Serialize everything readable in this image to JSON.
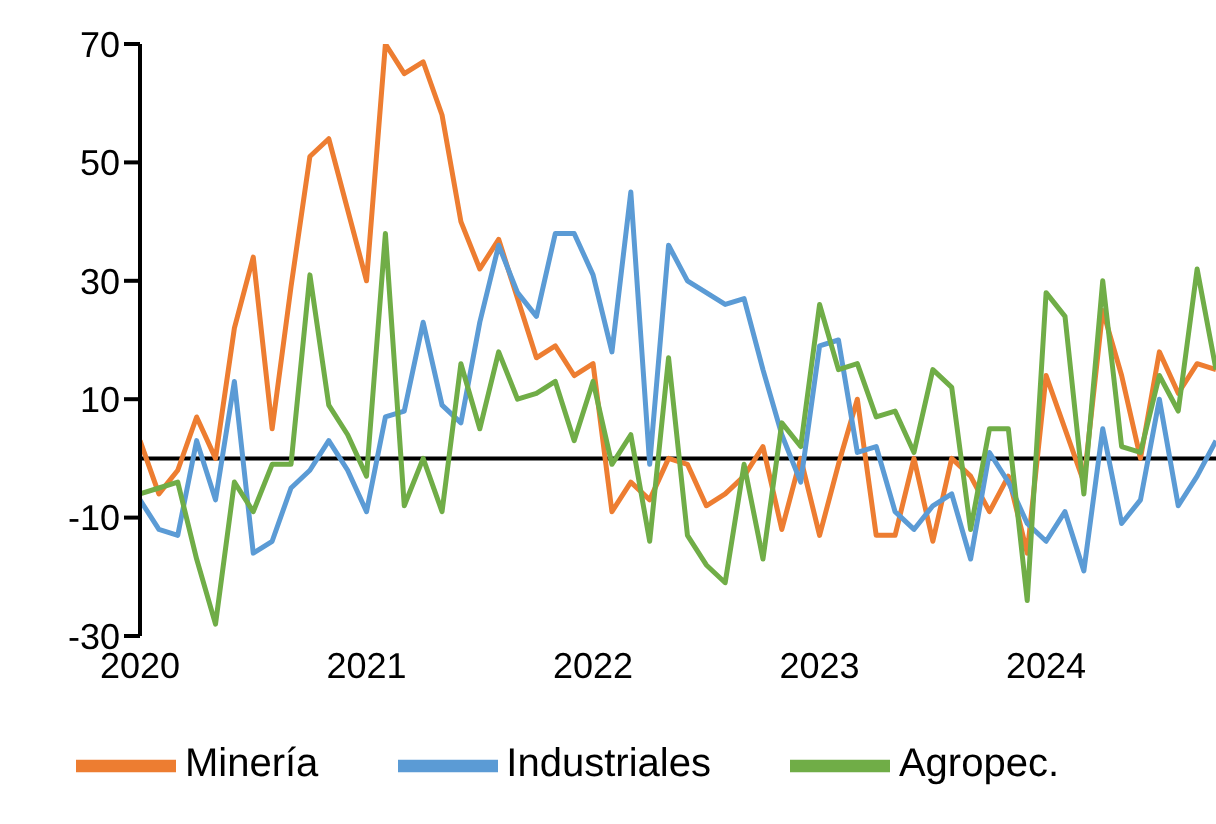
{
  "chart_data": {
    "type": "line",
    "x": [
      "2020-01",
      "2020-02",
      "2020-03",
      "2020-04",
      "2020-05",
      "2020-06",
      "2020-07",
      "2020-08",
      "2020-09",
      "2020-10",
      "2020-11",
      "2020-12",
      "2021-01",
      "2021-02",
      "2021-03",
      "2021-04",
      "2021-05",
      "2021-06",
      "2021-07",
      "2021-08",
      "2021-09",
      "2021-10",
      "2021-11",
      "2021-12",
      "2022-01",
      "2022-02",
      "2022-03",
      "2022-04",
      "2022-05",
      "2022-06",
      "2022-07",
      "2022-08",
      "2022-09",
      "2022-10",
      "2022-11",
      "2022-12",
      "2023-01",
      "2023-02",
      "2023-03",
      "2023-04",
      "2023-05",
      "2023-06",
      "2023-07",
      "2023-08",
      "2023-09",
      "2023-10",
      "2023-11",
      "2023-12",
      "2024-01",
      "2024-02",
      "2024-03",
      "2024-04",
      "2024-05",
      "2024-06",
      "2024-07",
      "2024-08",
      "2024-09",
      "2024-10"
    ],
    "series": [
      {
        "name": "Minería",
        "color": "#ed7d31",
        "values": [
          3,
          -6,
          -2,
          7,
          0,
          22,
          34,
          5,
          29,
          51,
          54,
          42,
          30,
          70,
          65,
          67,
          58,
          40,
          32,
          37,
          27,
          17,
          19,
          14,
          16,
          -9,
          -4,
          -7,
          0,
          -1,
          -8,
          -6,
          -3,
          2,
          -12,
          0,
          -13,
          -1,
          10,
          -13,
          -13,
          0,
          -14,
          0,
          -3,
          -9,
          -3,
          -16,
          14,
          5,
          -4,
          25,
          14,
          0,
          18,
          11,
          16,
          15
        ]
      },
      {
        "name": "Industriales",
        "color": "#5b9bd5",
        "values": [
          -7,
          -12,
          -13,
          3,
          -7,
          13,
          -16,
          -14,
          -5,
          -2,
          3,
          -2,
          -9,
          7,
          8,
          23,
          9,
          6,
          23,
          36,
          28,
          24,
          38,
          38,
          31,
          18,
          45,
          -1,
          36,
          30,
          28,
          26,
          27,
          15,
          4,
          -4,
          19,
          20,
          1,
          2,
          -9,
          -12,
          -8,
          -6,
          -17,
          1,
          -4,
          -11,
          -14,
          -9,
          -19,
          5,
          -11,
          -7,
          10,
          -8,
          -3,
          3
        ]
      },
      {
        "name": "Agropec.",
        "color": "#70ad47",
        "values": [
          -6,
          -5,
          -4,
          -17,
          -28,
          -4,
          -9,
          -1,
          -1,
          31,
          9,
          4,
          -3,
          38,
          -8,
          0,
          -9,
          16,
          5,
          18,
          10,
          11,
          13,
          3,
          13,
          -1,
          4,
          -14,
          17,
          -13,
          -18,
          -21,
          -1,
          -17,
          6,
          2,
          26,
          15,
          16,
          7,
          8,
          1,
          15,
          12,
          -12,
          5,
          5,
          -24,
          28,
          24,
          -6,
          30,
          2,
          1,
          14,
          8,
          32,
          15
        ]
      }
    ],
    "xlim": [
      "2020-01",
      "2024-10"
    ],
    "xticks": [
      "2020",
      "2021",
      "2022",
      "2023",
      "2024"
    ],
    "ylim": [
      -30,
      70
    ],
    "yticks": [
      -30,
      -10,
      10,
      30,
      50,
      70
    ],
    "ref_lines": [
      {
        "axis": "y",
        "value": 0,
        "color": "#000000"
      }
    ],
    "grid": false,
    "legend": "bottom",
    "marker": "none",
    "line_style": "solid"
  }
}
